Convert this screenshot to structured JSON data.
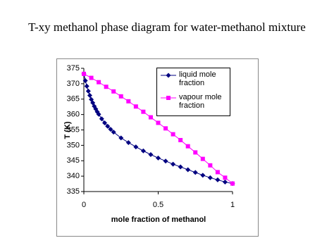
{
  "chart_data": {
    "type": "line",
    "title": "T-xy methanol phase diagram for water-methanol mixture",
    "x_label": "mole fraction of methanol",
    "y_label": "T (K)",
    "xlim": [
      0,
      1
    ],
    "xticks": [
      0,
      0.5,
      1
    ],
    "ylim": [
      335,
      375
    ],
    "yticks": [
      335,
      340,
      345,
      350,
      355,
      360,
      365,
      370,
      375
    ],
    "grid": false,
    "legend": "top-right",
    "series": [
      {
        "name": "liquid mole fraction",
        "color": "#000080",
        "marker": "diamond",
        "x": [
          0,
          0.01,
          0.02,
          0.03,
          0.04,
          0.05,
          0.06,
          0.07,
          0.08,
          0.09,
          0.1,
          0.12,
          0.14,
          0.16,
          0.18,
          0.2,
          0.25,
          0.3,
          0.35,
          0.4,
          0.45,
          0.5,
          0.55,
          0.6,
          0.65,
          0.7,
          0.75,
          0.8,
          0.85,
          0.9,
          0.95,
          1
        ],
        "values": [
          373.2,
          371,
          369.2,
          367.6,
          366.2,
          364.9,
          363.8,
          362.7,
          361.8,
          360.9,
          360.1,
          358.6,
          357.3,
          356.2,
          355.2,
          354.3,
          352.4,
          350.9,
          349.5,
          348.2,
          347,
          345.9,
          344.9,
          343.9,
          343,
          342.1,
          341.2,
          340.3,
          339.5,
          338.8,
          338.1,
          337.6
        ]
      },
      {
        "name": "vapour mole fraction",
        "color": "#ff00ff",
        "marker": "square",
        "x": [
          0,
          0.05,
          0.1,
          0.15,
          0.2,
          0.25,
          0.3,
          0.35,
          0.4,
          0.45,
          0.5,
          0.55,
          0.6,
          0.65,
          0.7,
          0.75,
          0.8,
          0.85,
          0.9,
          0.95,
          1
        ],
        "values": [
          373.2,
          371.9,
          370.5,
          369,
          367.5,
          365.9,
          364.3,
          362.6,
          360.9,
          359.1,
          357.3,
          355.5,
          353.6,
          351.7,
          349.7,
          347.7,
          345.6,
          343.5,
          341.3,
          339.5,
          337.6
        ]
      }
    ]
  }
}
